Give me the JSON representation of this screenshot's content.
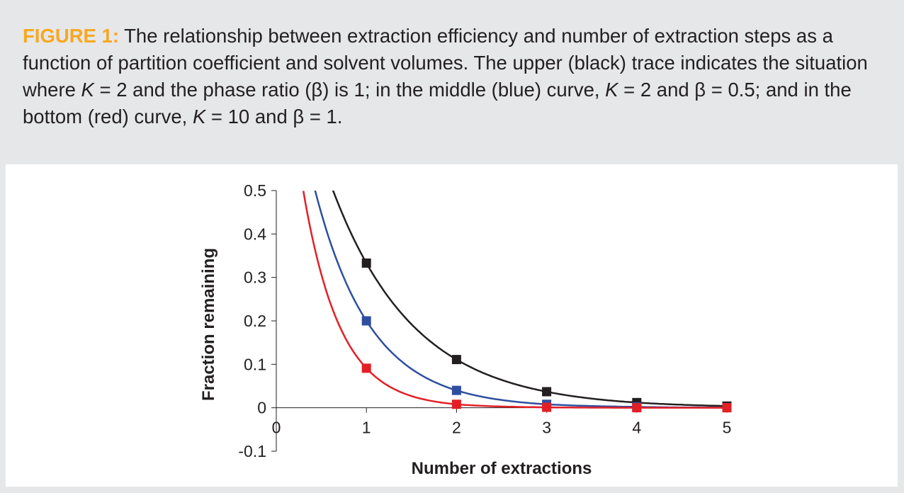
{
  "caption": {
    "figure_label": "FIGURE 1:",
    "seg1": " The relationship between extraction efficiency and number of extraction steps as a function of partition coefficient and solvent volumes. The upper (black) trace indicates the situation where ",
    "k1": "K",
    "seg2": " = 2 and the phase ratio (β) is 1; in the middle (blue) curve, ",
    "k2": "K",
    "seg3": " = 2 and β = 0.5; and in the bottom (red) curve, ",
    "k3": "K",
    "seg4": " = 10 and β = 1."
  },
  "chart_data": {
    "type": "scatter",
    "xlabel": "Number of extractions",
    "ylabel": "Fraction remaining",
    "xlim": [
      0,
      5
    ],
    "ylim": [
      -0.1,
      0.5
    ],
    "x_ticks": [
      0,
      1,
      2,
      3,
      4,
      5
    ],
    "x_tick_labels": [
      "0",
      "1",
      "2",
      "3",
      "4",
      "5"
    ],
    "y_ticks": [
      0.5,
      0.4,
      0.3,
      0.2,
      0.1,
      0,
      -0.1
    ],
    "y_tick_labels": [
      "0.5",
      "0.4",
      "0.3",
      "0.2",
      "0.1",
      "0",
      "-0.1"
    ],
    "series": [
      {
        "name": "K = 2, β = 1",
        "color": "#231f20",
        "x": [
          1,
          2,
          3,
          4,
          5
        ],
        "values": [
          0.333,
          0.111,
          0.037,
          0.012,
          0.004
        ]
      },
      {
        "name": "K = 2, β = 0.5",
        "color": "#2e4f9f",
        "x": [
          1,
          2,
          3,
          4,
          5
        ],
        "values": [
          0.2,
          0.04,
          0.008,
          0.002,
          0.0003
        ]
      },
      {
        "name": "K = 10, β = 1",
        "color": "#e31f26",
        "x": [
          1,
          2,
          3,
          4,
          5
        ],
        "values": [
          0.091,
          0.008,
          0.001,
          0.0001,
          0.0
        ]
      }
    ]
  }
}
